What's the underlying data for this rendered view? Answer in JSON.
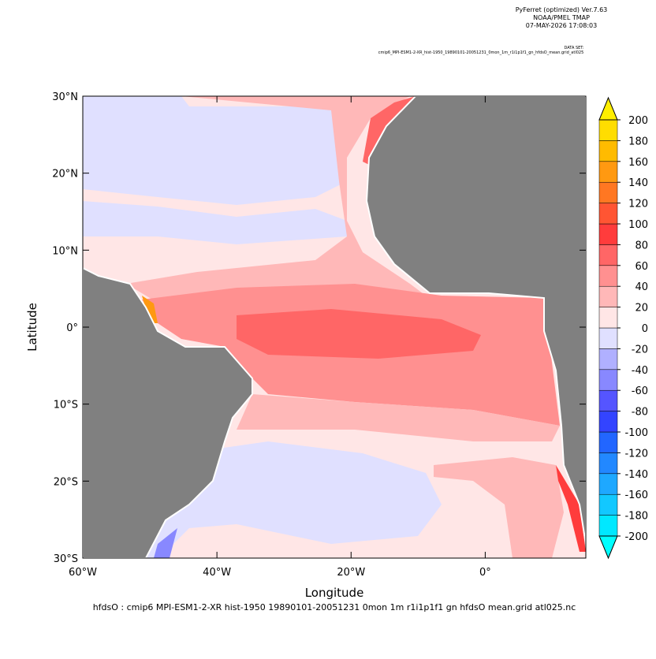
{
  "header": {
    "program": "PyFerret (optimized) Ver.7.63",
    "lab": "NOAA/PMEL TMAP",
    "date": "07-MAY-2026 17:08:03",
    "dataset_label": "DATA SET:",
    "dataset": "cmip6_MPI-ESM1-2-XR_hist-1950_19890101-20051231_0mon_1m_r1i1p1f1_gn_hfdsO_mean.grid_atl025"
  },
  "chart_data": {
    "type": "heatmap",
    "x_label": "Longitude",
    "y_label": "Latitude",
    "caption": "hfdsO : cmip6 MPI-ESM1-2-XR hist-1950 19890101-20051231 0mon 1m r1i1p1f1 gn hfdsO mean.grid atl025.nc",
    "xlim": [
      -60,
      15
    ],
    "ylim": [
      -30,
      30
    ],
    "xticks": [
      {
        "value": -60,
        "label": "60°W"
      },
      {
        "value": -40,
        "label": "40°W"
      },
      {
        "value": -20,
        "label": "20°W"
      },
      {
        "value": 0,
        "label": "0°"
      }
    ],
    "yticks": [
      {
        "value": 30,
        "label": "30°N"
      },
      {
        "value": 20,
        "label": "20°N"
      },
      {
        "value": 10,
        "label": "10°N"
      },
      {
        "value": 0,
        "label": "0°"
      },
      {
        "value": -10,
        "label": "10°S"
      },
      {
        "value": -20,
        "label": "20°S"
      },
      {
        "value": -30,
        "label": "30°S"
      }
    ],
    "colorbar": {
      "lim": [
        -200,
        200
      ],
      "levels": [
        -200,
        -180,
        -160,
        -140,
        -120,
        -100,
        -80,
        -60,
        -40,
        -20,
        0,
        20,
        40,
        60,
        80,
        100,
        120,
        140,
        160,
        180,
        200
      ],
      "colors": [
        "#00e8ff",
        "#12c8ff",
        "#1ea8ff",
        "#2288ff",
        "#2266ff",
        "#3344ff",
        "#5555ff",
        "#8888ff",
        "#b0b0ff",
        "#e0e0ff",
        "#ffe6e6",
        "#ffb8b8",
        "#ff9090",
        "#ff6666",
        "#ff3c3c",
        "#ff5533",
        "#ff7722",
        "#ff9911",
        "#ffbb00",
        "#ffdd00"
      ],
      "over_color": "#ffee00",
      "under_color": "#00ffff"
    }
  }
}
